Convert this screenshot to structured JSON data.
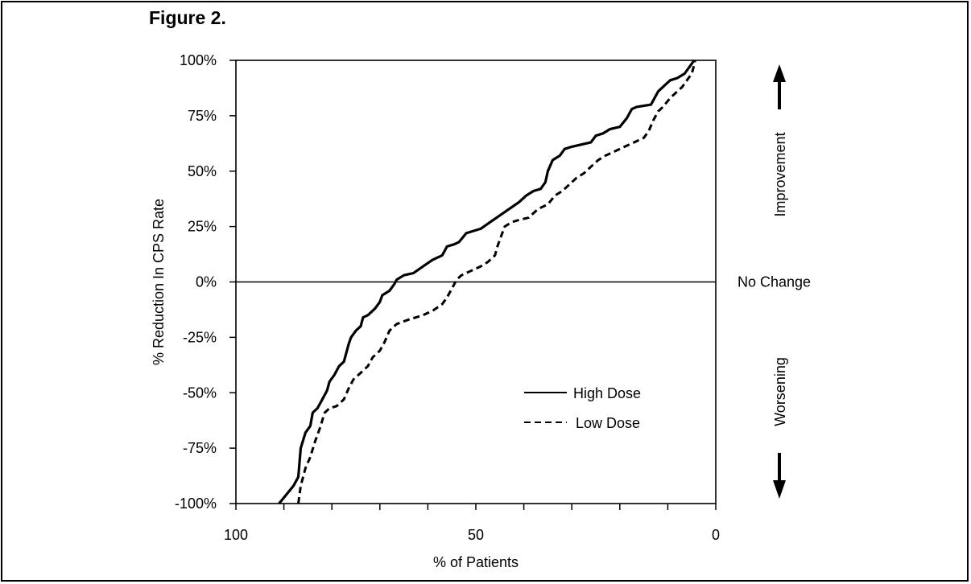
{
  "figure_label": "Figure 2.",
  "chart_data": {
    "type": "line",
    "xlabel": "% of Patients",
    "ylabel": "% Reduction In CPS Rate",
    "xlim": [
      100,
      0
    ],
    "x_direction": "reversed",
    "ylim": [
      -100,
      100
    ],
    "x_ticks": [
      100,
      90,
      80,
      70,
      60,
      50,
      40,
      30,
      20,
      10,
      0
    ],
    "x_tick_labels": [
      {
        "value": 100,
        "label": "100"
      },
      {
        "value": 50,
        "label": "50"
      },
      {
        "value": 0,
        "label": "0"
      }
    ],
    "y_ticks": [
      {
        "value": 100,
        "label": "100%"
      },
      {
        "value": 75,
        "label": "75%"
      },
      {
        "value": 50,
        "label": "50%"
      },
      {
        "value": 25,
        "label": "25%"
      },
      {
        "value": 0,
        "label": "0%"
      },
      {
        "value": -25,
        "label": "-25%"
      },
      {
        "value": -50,
        "label": "-50%"
      },
      {
        "value": -75,
        "label": "-75%"
      },
      {
        "value": -100,
        "label": "-100%"
      }
    ],
    "reference_line": {
      "y": 0,
      "label": "No Change"
    },
    "annotations": {
      "up": "Improvement",
      "down": "Worsening"
    },
    "legend_position": "lower-right",
    "series": [
      {
        "name": "High Dose",
        "style": "solid",
        "points": [
          [
            91,
            -100
          ],
          [
            88,
            -92
          ],
          [
            87,
            -88
          ],
          [
            86.5,
            -75
          ],
          [
            85.5,
            -68
          ],
          [
            84.5,
            -65
          ],
          [
            84,
            -59
          ],
          [
            83,
            -57
          ],
          [
            82,
            -53
          ],
          [
            81,
            -49
          ],
          [
            80.5,
            -45
          ],
          [
            79.5,
            -42
          ],
          [
            78.5,
            -38
          ],
          [
            77.5,
            -36
          ],
          [
            77,
            -32
          ],
          [
            76.5,
            -28
          ],
          [
            76,
            -25
          ],
          [
            75,
            -22
          ],
          [
            74,
            -20
          ],
          [
            73.5,
            -16
          ],
          [
            72.5,
            -15
          ],
          [
            71,
            -12
          ],
          [
            70,
            -9
          ],
          [
            69.5,
            -6
          ],
          [
            68,
            -4
          ],
          [
            67,
            -1
          ],
          [
            66.5,
            1
          ],
          [
            65,
            3
          ],
          [
            63,
            4
          ],
          [
            61,
            7
          ],
          [
            59,
            10
          ],
          [
            57,
            12
          ],
          [
            56,
            16
          ],
          [
            54.5,
            17
          ],
          [
            53.5,
            18
          ],
          [
            52,
            22
          ],
          [
            50.5,
            23
          ],
          [
            49,
            24
          ],
          [
            47,
            27
          ],
          [
            45,
            30
          ],
          [
            43,
            33
          ],
          [
            41,
            36
          ],
          [
            39.5,
            39
          ],
          [
            38,
            41
          ],
          [
            36.5,
            42
          ],
          [
            35.5,
            45
          ],
          [
            35,
            50
          ],
          [
            34,
            55
          ],
          [
            32.5,
            57
          ],
          [
            31.5,
            60
          ],
          [
            30,
            61
          ],
          [
            28,
            62
          ],
          [
            26,
            63
          ],
          [
            25,
            66
          ],
          [
            23.5,
            67
          ],
          [
            22,
            69
          ],
          [
            20,
            70
          ],
          [
            18.5,
            74
          ],
          [
            17.5,
            78
          ],
          [
            16.5,
            79
          ],
          [
            13.5,
            80
          ],
          [
            12,
            86
          ],
          [
            11.5,
            87
          ],
          [
            10.5,
            89
          ],
          [
            9.5,
            91
          ],
          [
            8,
            92
          ],
          [
            6.5,
            94
          ],
          [
            5.5,
            97
          ],
          [
            4.5,
            100
          ]
        ]
      },
      {
        "name": "Low Dose",
        "style": "dashed",
        "points": [
          [
            87,
            -100
          ],
          [
            86.5,
            -92
          ],
          [
            85.5,
            -84
          ],
          [
            84.5,
            -79
          ],
          [
            83.5,
            -72
          ],
          [
            82.5,
            -66
          ],
          [
            81.5,
            -59
          ],
          [
            80.5,
            -57
          ],
          [
            79,
            -56
          ],
          [
            77.5,
            -53
          ],
          [
            76.5,
            -48
          ],
          [
            75.5,
            -44
          ],
          [
            74,
            -41
          ],
          [
            72.5,
            -38
          ],
          [
            71.5,
            -34
          ],
          [
            70,
            -31
          ],
          [
            69,
            -27
          ],
          [
            68,
            -22
          ],
          [
            66.5,
            -19
          ],
          [
            64,
            -17
          ],
          [
            61,
            -15
          ],
          [
            59,
            -13
          ],
          [
            57,
            -10
          ],
          [
            56,
            -7
          ],
          [
            55,
            -3
          ],
          [
            54,
            1
          ],
          [
            53,
            3
          ],
          [
            51,
            5
          ],
          [
            49,
            7
          ],
          [
            47.5,
            9
          ],
          [
            46,
            12
          ],
          [
            45.5,
            16
          ],
          [
            44,
            25
          ],
          [
            42.5,
            27
          ],
          [
            41,
            28
          ],
          [
            39,
            29
          ],
          [
            38,
            31
          ],
          [
            37,
            33
          ],
          [
            35,
            35
          ],
          [
            33.5,
            39
          ],
          [
            32,
            41
          ],
          [
            30.5,
            44
          ],
          [
            29,
            47
          ],
          [
            27.5,
            49
          ],
          [
            26,
            52
          ],
          [
            24.5,
            55
          ],
          [
            23,
            57
          ],
          [
            21,
            59
          ],
          [
            19,
            61
          ],
          [
            17,
            63
          ],
          [
            15,
            65
          ],
          [
            14,
            68
          ],
          [
            13,
            73
          ],
          [
            12,
            77
          ],
          [
            11,
            79
          ],
          [
            9.5,
            83
          ],
          [
            8,
            86
          ],
          [
            7,
            88
          ],
          [
            6,
            91
          ],
          [
            5,
            94
          ],
          [
            4.5,
            98
          ],
          [
            4.3,
            100
          ]
        ]
      }
    ]
  }
}
